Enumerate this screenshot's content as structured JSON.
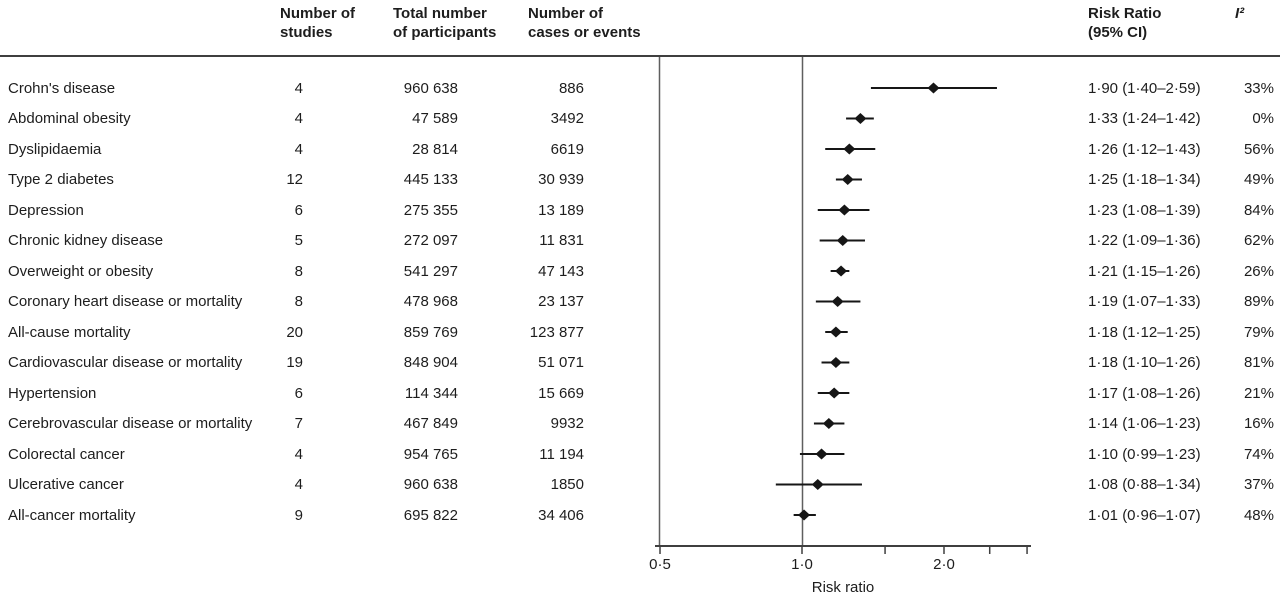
{
  "columns": {
    "studies": "Number of\nstudies",
    "participants": "Total number\nof participants",
    "cases": "Number of\ncases or events",
    "risk_ratio": "Risk Ratio\n(95% CI)",
    "i2": "I²"
  },
  "colors": {
    "data": "#161616",
    "frame": "#5f5f5f",
    "axis": "#3f3f3f",
    "text": "#1d1d1d"
  },
  "chart_data": {
    "type": "scatter",
    "subtype": "forest-plot",
    "title": "",
    "xlabel": "Risk ratio",
    "ylabel": "",
    "x_scale": "log",
    "xlim": [
      0.5,
      3.0
    ],
    "reference_line_x": 1.0,
    "grid": false,
    "legend": "none",
    "x_ticks": [
      {
        "value": 0.5,
        "label": "0·5"
      },
      {
        "value": 1.0,
        "label": "1·0"
      },
      {
        "value": 1.5,
        "label": ""
      },
      {
        "value": 2.0,
        "label": "2·0"
      },
      {
        "value": 2.5,
        "label": ""
      },
      {
        "value": 3.0,
        "label": ""
      }
    ],
    "rows": [
      {
        "label": "Crohn's disease",
        "studies": "4",
        "participants": "960 638",
        "cases": "886",
        "rr": 1.9,
        "ci_low": 1.4,
        "ci_high": 2.59,
        "rr_ci_text": "1·90 (1·40–2·59)",
        "i2": "33%"
      },
      {
        "label": "Abdominal obesity",
        "studies": "4",
        "participants": "47 589",
        "cases": "3492",
        "rr": 1.33,
        "ci_low": 1.24,
        "ci_high": 1.42,
        "rr_ci_text": "1·33 (1·24–1·42)",
        "i2": "0%"
      },
      {
        "label": "Dyslipidaemia",
        "studies": "4",
        "participants": "28 814",
        "cases": "6619",
        "rr": 1.26,
        "ci_low": 1.12,
        "ci_high": 1.43,
        "rr_ci_text": "1·26 (1·12–1·43)",
        "i2": "56%"
      },
      {
        "label": "Type 2 diabetes",
        "studies": "12",
        "participants": "445 133",
        "cases": "30 939",
        "rr": 1.25,
        "ci_low": 1.18,
        "ci_high": 1.34,
        "rr_ci_text": "1·25 (1·18–1·34)",
        "i2": "49%"
      },
      {
        "label": "Depression",
        "studies": "6",
        "participants": "275 355",
        "cases": "13 189",
        "rr": 1.23,
        "ci_low": 1.08,
        "ci_high": 1.39,
        "rr_ci_text": "1·23 (1·08–1·39)",
        "i2": "84%"
      },
      {
        "label": "Chronic kidney disease",
        "studies": "5",
        "participants": "272 097",
        "cases": "11 831",
        "rr": 1.22,
        "ci_low": 1.09,
        "ci_high": 1.36,
        "rr_ci_text": "1·22 (1·09–1·36)",
        "i2": "62%"
      },
      {
        "label": "Overweight or obesity",
        "studies": "8",
        "participants": "541 297",
        "cases": "47 143",
        "rr": 1.21,
        "ci_low": 1.15,
        "ci_high": 1.26,
        "rr_ci_text": "1·21 (1·15–1·26)",
        "i2": "26%"
      },
      {
        "label": "Coronary heart disease or mortality",
        "studies": "8",
        "participants": "478 968",
        "cases": "23 137",
        "rr": 1.19,
        "ci_low": 1.07,
        "ci_high": 1.33,
        "rr_ci_text": "1·19 (1·07–1·33)",
        "i2": "89%"
      },
      {
        "label": "All-cause mortality",
        "studies": "20",
        "participants": "859 769",
        "cases": "123 877",
        "rr": 1.18,
        "ci_low": 1.12,
        "ci_high": 1.25,
        "rr_ci_text": "1·18 (1·12–1·25)",
        "i2": "79%"
      },
      {
        "label": "Cardiovascular disease or mortality",
        "studies": "19",
        "participants": "848 904",
        "cases": "51 071",
        "rr": 1.18,
        "ci_low": 1.1,
        "ci_high": 1.26,
        "rr_ci_text": "1·18 (1·10–1·26)",
        "i2": "81%"
      },
      {
        "label": "Hypertension",
        "studies": "6",
        "participants": "114 344",
        "cases": "15 669",
        "rr": 1.17,
        "ci_low": 1.08,
        "ci_high": 1.26,
        "rr_ci_text": "1·17 (1·08–1·26)",
        "i2": "21%"
      },
      {
        "label": "Cerebrovascular disease or mortality",
        "studies": "7",
        "participants": "467 849",
        "cases": "9932",
        "rr": 1.14,
        "ci_low": 1.06,
        "ci_high": 1.23,
        "rr_ci_text": "1·14 (1·06–1·23)",
        "i2": "16%"
      },
      {
        "label": "Colorectal cancer",
        "studies": "4",
        "participants": "954 765",
        "cases": "11 194",
        "rr": 1.1,
        "ci_low": 0.99,
        "ci_high": 1.23,
        "rr_ci_text": "1·10 (0·99–1·23)",
        "i2": "74%"
      },
      {
        "label": "Ulcerative cancer",
        "studies": "4",
        "participants": "960 638",
        "cases": "1850",
        "rr": 1.08,
        "ci_low": 0.88,
        "ci_high": 1.34,
        "rr_ci_text": "1·08 (0·88–1·34)",
        "i2": "37%"
      },
      {
        "label": "All-cancer mortality",
        "studies": "9",
        "participants": "695 822",
        "cases": "34 406",
        "rr": 1.01,
        "ci_low": 0.96,
        "ci_high": 1.07,
        "rr_ci_text": "1·01 (0·96–1·07)",
        "i2": "48%"
      }
    ]
  }
}
